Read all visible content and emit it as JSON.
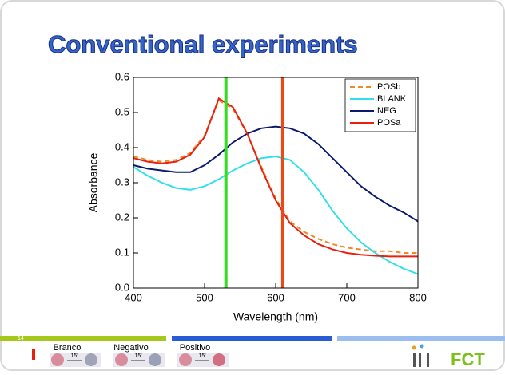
{
  "slide": {
    "title": "Conventional experiments",
    "number": "14",
    "samples": [
      "Branco",
      "Negativo",
      "Positivo"
    ],
    "time_label": "15'",
    "logo": "FCT"
  },
  "chart_data": {
    "type": "line",
    "xlabel": "Wavelength (nm)",
    "ylabel": "Absorbance",
    "x": [
      400,
      420,
      440,
      460,
      480,
      500,
      520,
      540,
      560,
      580,
      600,
      620,
      640,
      660,
      680,
      700,
      720,
      740,
      760,
      780,
      800
    ],
    "series": [
      {
        "name": "POSb",
        "color": "#f08a24",
        "dashed": true,
        "values": [
          0.375,
          0.365,
          0.36,
          0.365,
          0.385,
          0.435,
          0.535,
          0.51,
          0.44,
          0.345,
          0.255,
          0.19,
          0.16,
          0.14,
          0.125,
          0.115,
          0.11,
          0.105,
          0.105,
          0.1,
          0.1
        ]
      },
      {
        "name": "BLANK",
        "color": "#33e0e8",
        "dashed": false,
        "values": [
          0.345,
          0.32,
          0.3,
          0.285,
          0.28,
          0.29,
          0.31,
          0.335,
          0.355,
          0.37,
          0.375,
          0.365,
          0.33,
          0.28,
          0.22,
          0.17,
          0.13,
          0.1,
          0.075,
          0.055,
          0.04
        ]
      },
      {
        "name": "NEG",
        "color": "#0a1a6e",
        "dashed": false,
        "values": [
          0.35,
          0.34,
          0.335,
          0.33,
          0.33,
          0.35,
          0.38,
          0.415,
          0.44,
          0.455,
          0.46,
          0.455,
          0.44,
          0.41,
          0.37,
          0.33,
          0.29,
          0.26,
          0.235,
          0.215,
          0.19
        ]
      },
      {
        "name": "POSa",
        "color": "#e8200e",
        "dashed": false,
        "values": [
          0.37,
          0.36,
          0.355,
          0.36,
          0.38,
          0.43,
          0.54,
          0.515,
          0.44,
          0.34,
          0.25,
          0.185,
          0.15,
          0.125,
          0.11,
          0.1,
          0.095,
          0.092,
          0.09,
          0.09,
          0.09
        ]
      }
    ],
    "vlines": [
      {
        "x": 530,
        "color": "#33dd22"
      },
      {
        "x": 610,
        "color": "#e84a1a"
      }
    ],
    "xlim": [
      400,
      800
    ],
    "xticks": [
      400,
      500,
      600,
      700,
      800
    ],
    "ylim": [
      0,
      0.6
    ],
    "yticks": [
      {
        "value": 0,
        "label": "0.0"
      },
      0.1,
      0.2,
      0.3,
      0.4,
      0.5,
      0.6
    ],
    "legend": "top-right"
  }
}
